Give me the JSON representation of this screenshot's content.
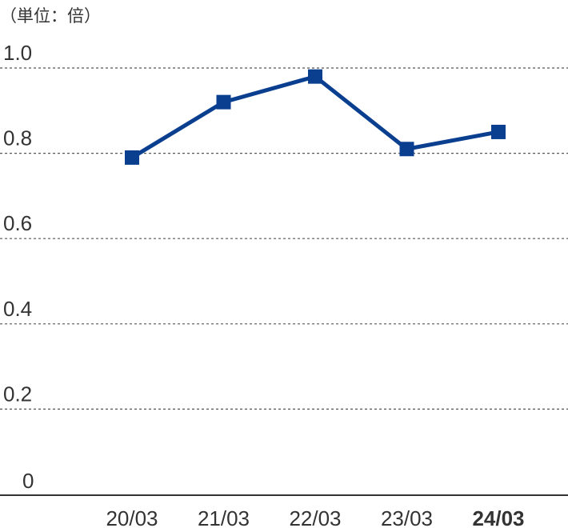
{
  "chart_data": {
    "type": "line",
    "unit_label": "（単位：倍）",
    "categories": [
      "20/03",
      "21/03",
      "22/03",
      "23/03",
      "24/03"
    ],
    "emphasized_category": "24/03",
    "y_ticks": [
      "0",
      "0.2",
      "0.4",
      "0.6",
      "0.8",
      "1.0"
    ],
    "ylim": [
      0,
      1.0
    ],
    "series": [
      {
        "values": [
          0.79,
          0.92,
          0.98,
          0.81,
          0.85
        ]
      }
    ],
    "grid": true,
    "legend": "none",
    "colors": {
      "line": "#0a3f8f",
      "marker": "#0a3f8f",
      "grid": "#555555",
      "axis": "#333333",
      "text": "#333333"
    }
  }
}
